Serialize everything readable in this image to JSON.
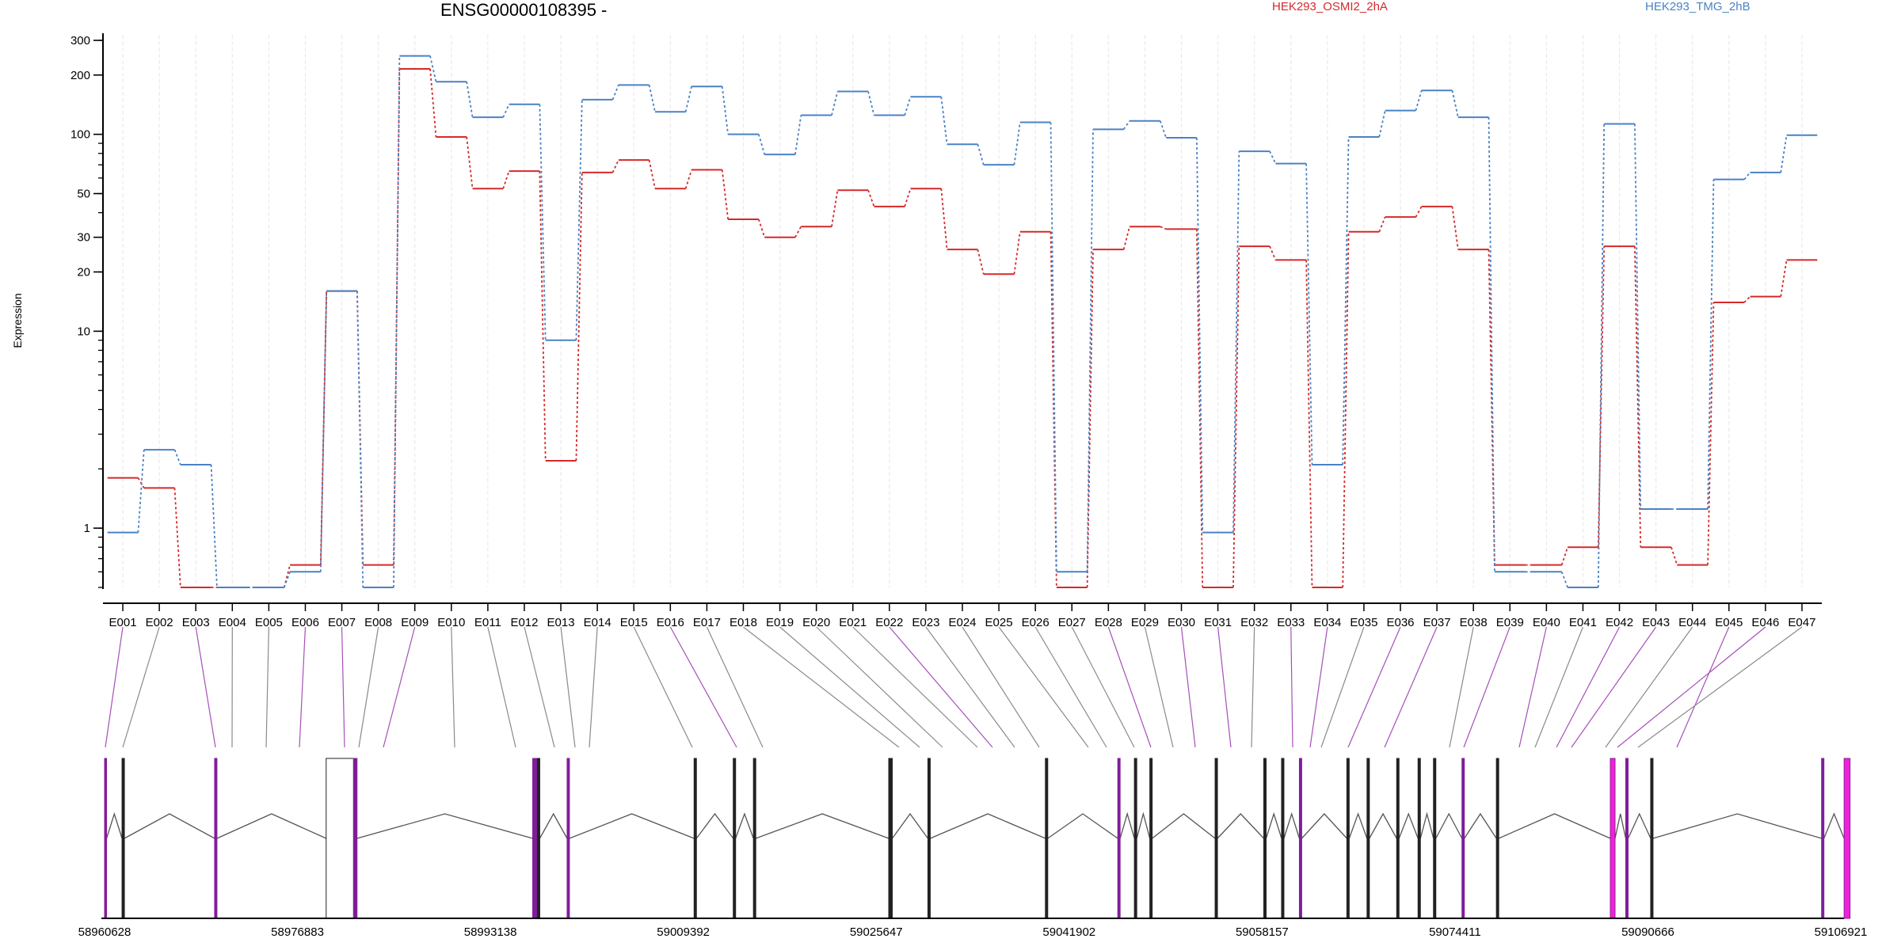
{
  "chart_data": {
    "type": "line",
    "title": "ENSG00000108395 -",
    "ylabel": "Expression",
    "xlabel": "",
    "y_scale": "log",
    "ylim": [
      0.5,
      320
    ],
    "y_ticks": [
      1,
      10,
      20,
      30,
      50,
      100,
      200,
      300
    ],
    "grid": "vertical dashed lines at each exon",
    "legend_position": "top",
    "categories": [
      "E001",
      "E002",
      "E003",
      "E004",
      "E005",
      "E006",
      "E007",
      "E008",
      "E009",
      "E010",
      "E011",
      "E012",
      "E013",
      "E014",
      "E015",
      "E016",
      "E017",
      "E018",
      "E019",
      "E020",
      "E021",
      "E022",
      "E023",
      "E024",
      "E025",
      "E026",
      "E027",
      "E028",
      "E029",
      "E030",
      "E031",
      "E032",
      "E033",
      "E034",
      "E035",
      "E036",
      "E037",
      "E038",
      "E039",
      "E040",
      "E041",
      "E042",
      "E043",
      "E044",
      "E045",
      "E046",
      "E047"
    ],
    "series": [
      {
        "name": "HEK293_OSMI2_2hA",
        "color": "#d42a2a",
        "values": [
          1.8,
          1.6,
          0.5,
          0.5,
          0.5,
          0.65,
          16,
          0.65,
          215,
          97,
          53,
          65,
          2.2,
          64,
          74,
          53,
          66,
          37,
          30,
          34,
          52,
          43,
          53,
          26,
          19.5,
          32,
          0.5,
          26,
          34,
          33,
          0.5,
          27,
          23,
          0.5,
          32,
          38,
          43,
          26,
          0.65,
          0.65,
          0.8,
          27,
          0.8,
          0.65,
          14,
          15,
          23
        ]
      },
      {
        "name": "HEK293_TMG_2hB",
        "color": "#4a82c4",
        "values": [
          0.95,
          2.5,
          2.1,
          0.5,
          0.5,
          0.6,
          16,
          0.5,
          250,
          185,
          122,
          142,
          9,
          150,
          178,
          130,
          175,
          100,
          79,
          125,
          165,
          125,
          155,
          89,
          70,
          115,
          0.6,
          106,
          117,
          96,
          0.95,
          82,
          71,
          2.1,
          97,
          132,
          167,
          122,
          0.6,
          0.6,
          0.5,
          113,
          1.25,
          1.25,
          59,
          64,
          99
        ]
      }
    ],
    "gene_model": {
      "coordinate_labels": [
        "58960628",
        "58976883",
        "58993138",
        "59009392",
        "59025647",
        "59041902",
        "59058157",
        "59074411",
        "59090666",
        "59106921"
      ],
      "coord_range": [
        58960628,
        59106921
      ],
      "exon_starts": [
        58960628,
        58962100,
        58969900,
        58979300,
        58981600,
        58996700,
        58996900,
        58997100,
        58999600,
        59010300,
        59013600,
        59015300,
        59026700,
        59030000,
        59039900,
        59046000,
        59047400,
        59048700,
        59054200,
        59058300,
        59059800,
        59061300,
        59065300,
        59067000,
        59069500,
        59071300,
        59072600,
        59075000,
        59077900,
        59087500,
        59088800,
        59090900,
        59105300,
        59107200
      ],
      "exon_ends": [
        58960800,
        58962300,
        58970100,
        58981800,
        58981900,
        58997000,
        58997100,
        58997300,
        58999800,
        59010500,
        59013800,
        59015500,
        59027000,
        59030200,
        59040100,
        59046200,
        59047600,
        59048900,
        59054400,
        59058500,
        59060000,
        59061500,
        59065500,
        59067200,
        59069700,
        59071500,
        59072800,
        59075200,
        59078100,
        59087900,
        59089000,
        59091100,
        59105500,
        59107700
      ],
      "highlighted_exons": [
        0,
        2,
        4,
        5,
        6,
        8,
        15,
        21,
        27,
        29,
        30,
        32,
        33
      ],
      "exon_map_x_positions": [
        133,
        155,
        272,
        293,
        336,
        378,
        435,
        453,
        484,
        574,
        651,
        700,
        726,
        744,
        874,
        930,
        963,
        1135,
        1161,
        1190,
        1234,
        1253,
        1281,
        1312,
        1374,
        1397,
        1432,
        1453,
        1481,
        1509,
        1554,
        1580,
        1632,
        1654,
        1668,
        1702,
        1748,
        1830,
        1848,
        1918,
        1938,
        1965,
        1984,
        2027,
        2117,
        2042,
        2068,
        2074,
        2080,
        2248,
        2275
      ]
    }
  }
}
